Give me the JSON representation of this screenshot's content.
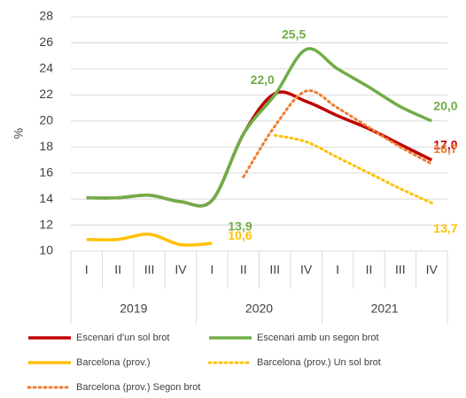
{
  "chart_data": {
    "type": "line",
    "y_label": "%",
    "categories": [
      "I",
      "II",
      "III",
      "IV",
      "I",
      "II",
      "III",
      "IV",
      "I",
      "II",
      "III",
      "IV"
    ],
    "groups": [
      "2019",
      "2020",
      "2021"
    ],
    "ylim": [
      10,
      28
    ],
    "yticks": [
      10,
      12,
      14,
      16,
      18,
      20,
      22,
      24,
      26,
      28
    ],
    "series": [
      {
        "name": "Escenari d'un sol brot",
        "color": "#c00000",
        "dash": "solid",
        "values": [
          14.1,
          14.1,
          14.3,
          13.8,
          13.9,
          19.0,
          22.1,
          21.5,
          20.4,
          19.4,
          18.2,
          17.0
        ],
        "value_labels": [
          null,
          null,
          null,
          null,
          null,
          null,
          null,
          null,
          null,
          null,
          null,
          "17,0"
        ]
      },
      {
        "name": "Escenari amb un segon brot",
        "color": "#70ad47",
        "dash": "solid",
        "values": [
          14.1,
          14.1,
          14.3,
          13.8,
          13.9,
          19.0,
          22.0,
          25.5,
          24.0,
          22.6,
          21.1,
          20.0
        ],
        "value_labels": [
          null,
          null,
          null,
          null,
          "13,9",
          null,
          "22,0",
          "25,5",
          null,
          null,
          null,
          "20,0"
        ]
      },
      {
        "name": "Barcelona (prov.)",
        "color": "#ffc000",
        "dash": "solid",
        "values": [
          10.9,
          10.9,
          11.3,
          10.5,
          10.6,
          null,
          null,
          null,
          null,
          null,
          null,
          null
        ],
        "value_labels": [
          null,
          null,
          null,
          null,
          "10,6",
          null,
          null,
          null,
          null,
          null,
          null,
          null
        ]
      },
      {
        "name": "Barcelona (prov.) Un sol brot",
        "color": "#ffc000",
        "dash": "dotted",
        "values": [
          null,
          null,
          null,
          null,
          null,
          null,
          18.9,
          18.4,
          17.2,
          16.0,
          14.8,
          13.7
        ],
        "value_labels": [
          null,
          null,
          null,
          null,
          null,
          null,
          null,
          null,
          null,
          null,
          null,
          "13,7"
        ]
      },
      {
        "name": "Barcelona (prov.) Segon brot",
        "color": "#ed7d31",
        "dash": "dotted",
        "values": [
          null,
          null,
          null,
          null,
          null,
          15.7,
          19.6,
          22.3,
          21.0,
          19.5,
          18.0,
          16.7
        ],
        "value_labels": [
          null,
          null,
          null,
          null,
          null,
          null,
          null,
          null,
          null,
          null,
          null,
          "16,7"
        ]
      }
    ],
    "grid": true
  }
}
